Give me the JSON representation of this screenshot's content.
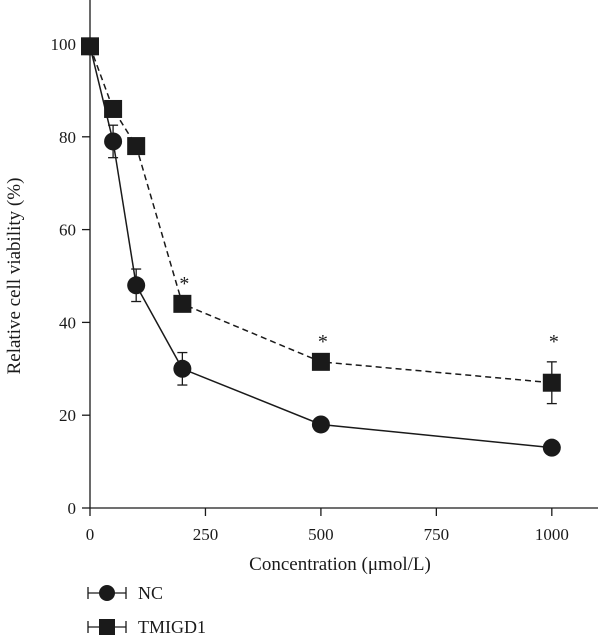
{
  "chart_data": {
    "type": "line",
    "xlabel": "Concentration (μmol/L)",
    "ylabel": "Relative cell viability (%)",
    "xlim": [
      0,
      1100
    ],
    "ylim": [
      0,
      100
    ],
    "xticks": [
      0,
      250,
      500,
      750,
      1000
    ],
    "yticks": [
      0,
      20,
      40,
      60,
      80,
      100
    ],
    "grid": false,
    "legend": "bottom-left",
    "series": [
      {
        "name": "NC",
        "marker": "circle",
        "linestyle": "solid",
        "x": [
          0,
          50,
          100,
          200,
          500,
          1000
        ],
        "y": [
          99.5,
          79,
          48,
          30,
          18,
          13
        ],
        "err": [
          0,
          3.5,
          3.5,
          3.5,
          0,
          0
        ]
      },
      {
        "name": "TMIGD1",
        "marker": "square",
        "linestyle": "dashed",
        "x": [
          0,
          50,
          100,
          200,
          500,
          1000
        ],
        "y": [
          99.5,
          86,
          78,
          44,
          31.5,
          27
        ],
        "err": [
          0,
          0,
          0,
          0,
          0,
          4.5
        ]
      }
    ],
    "annotations": [
      {
        "text": "*",
        "x": 200,
        "y": 44
      },
      {
        "text": "*",
        "x": 500,
        "y": 31.5
      },
      {
        "text": "*",
        "x": 1000,
        "y": 31.5
      }
    ]
  },
  "colors": {
    "ink": "#1a1a1a",
    "background": "#ffffff"
  }
}
